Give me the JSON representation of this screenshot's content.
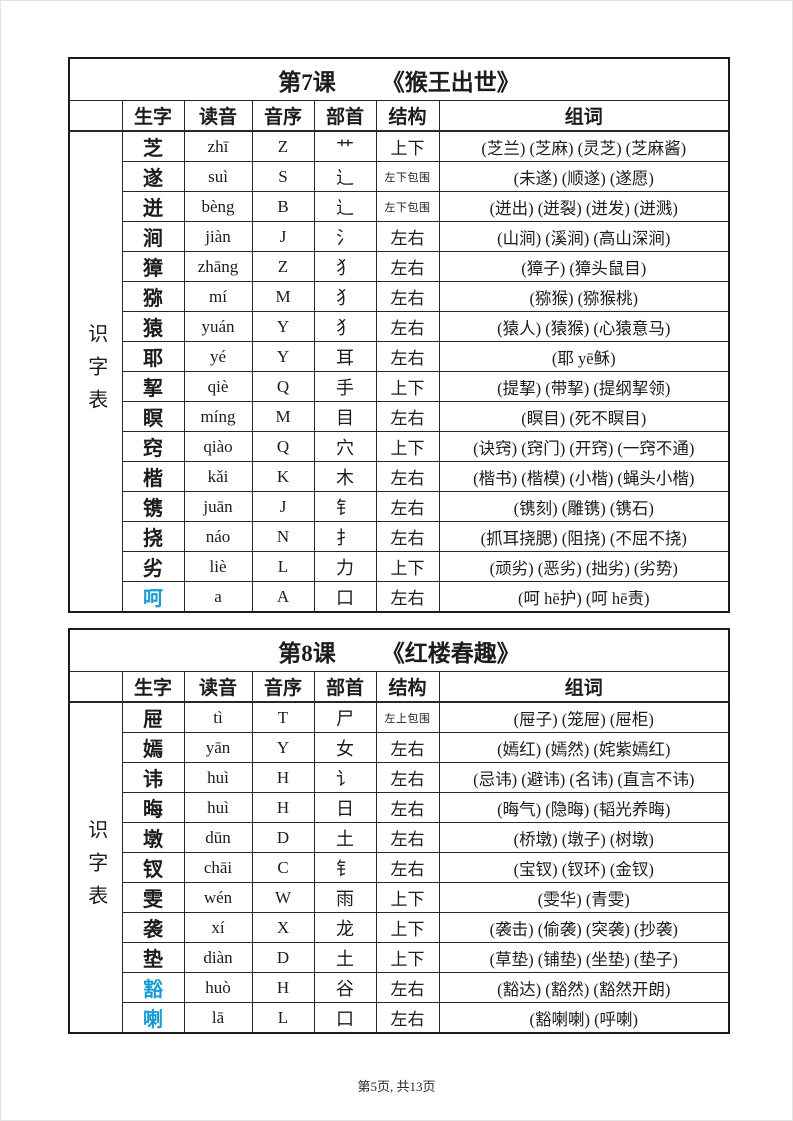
{
  "accent": {
    "highlight_blue": "#1b9bd5"
  },
  "side_label": "识字表",
  "headers": {
    "char": "生字",
    "pinyin": "读音",
    "initial": "音序",
    "radical": "部首",
    "structure": "结构",
    "words": "组词"
  },
  "footer": {
    "page_label": "第5页, 共13页"
  },
  "tables": [
    {
      "lesson": "第7课",
      "title": "《猴王出世》",
      "rows": [
        {
          "char": "芝",
          "pinyin": "zhī",
          "initial": "Z",
          "radical": "艹",
          "structure": "上下",
          "blue": false,
          "words": "(芝兰) (芝麻) (灵芝) (芝麻酱)"
        },
        {
          "char": "遂",
          "pinyin": "suì",
          "initial": "S",
          "radical": "辶",
          "structure": "左下包围",
          "blue": false,
          "words": "(未遂) (顺遂) (遂愿)"
        },
        {
          "char": "迸",
          "pinyin": "bèng",
          "initial": "B",
          "radical": "辶",
          "structure": "左下包围",
          "blue": false,
          "words": "(迸出) (迸裂) (迸发) (迸溅)"
        },
        {
          "char": "涧",
          "pinyin": "jiàn",
          "initial": "J",
          "radical": "氵",
          "structure": "左右",
          "blue": false,
          "words": "(山涧) (溪涧) (高山深涧)"
        },
        {
          "char": "獐",
          "pinyin": "zhāng",
          "initial": "Z",
          "radical": "犭",
          "structure": "左右",
          "blue": false,
          "words": "(獐子) (獐头鼠目)"
        },
        {
          "char": "猕",
          "pinyin": "mí",
          "initial": "M",
          "radical": "犭",
          "structure": "左右",
          "blue": false,
          "words": "(猕猴) (猕猴桃)"
        },
        {
          "char": "猿",
          "pinyin": "yuán",
          "initial": "Y",
          "radical": "犭",
          "structure": "左右",
          "blue": false,
          "words": "(猿人) (猿猴) (心猿意马)"
        },
        {
          "char": "耶",
          "pinyin": "yé",
          "initial": "Y",
          "radical": "耳",
          "structure": "左右",
          "blue": false,
          "words": "(耶 yē稣)"
        },
        {
          "char": "挈",
          "pinyin": "qiè",
          "initial": "Q",
          "radical": "手",
          "structure": "上下",
          "blue": false,
          "words": "(提挈) (带挈) (提纲挈领)"
        },
        {
          "char": "瞑",
          "pinyin": "míng",
          "initial": "M",
          "radical": "目",
          "structure": "左右",
          "blue": false,
          "words": "(瞑目) (死不瞑目)"
        },
        {
          "char": "窍",
          "pinyin": "qiào",
          "initial": "Q",
          "radical": "穴",
          "structure": "上下",
          "blue": false,
          "words": "(诀窍) (窍门) (开窍) (一窍不通)"
        },
        {
          "char": "楷",
          "pinyin": "kǎi",
          "initial": "K",
          "radical": "木",
          "structure": "左右",
          "blue": false,
          "words": "(楷书) (楷模) (小楷) (蝇头小楷)"
        },
        {
          "char": "镌",
          "pinyin": "juān",
          "initial": "J",
          "radical": "钅",
          "structure": "左右",
          "blue": false,
          "words": "(镌刻) (雕镌) (镌石)"
        },
        {
          "char": "挠",
          "pinyin": "náo",
          "initial": "N",
          "radical": "扌",
          "structure": "左右",
          "blue": false,
          "words": "(抓耳挠腮) (阻挠) (不屈不挠)"
        },
        {
          "char": "劣",
          "pinyin": "liè",
          "initial": "L",
          "radical": "力",
          "structure": "上下",
          "blue": false,
          "words": "(顽劣) (恶劣) (拙劣) (劣势)"
        },
        {
          "char": "呵",
          "pinyin": "a",
          "initial": "A",
          "radical": "口",
          "structure": "左右",
          "blue": true,
          "words": "(呵 hē护) (呵 hē责)"
        }
      ]
    },
    {
      "lesson": "第8课",
      "title": "《红楼春趣》",
      "rows": [
        {
          "char": "屉",
          "pinyin": "tì",
          "initial": "T",
          "radical": "尸",
          "structure": "左上包围",
          "blue": false,
          "words": "(屉子) (笼屉) (屉柜)"
        },
        {
          "char": "嫣",
          "pinyin": "yān",
          "initial": "Y",
          "radical": "女",
          "structure": "左右",
          "blue": false,
          "words": "(嫣红) (嫣然) (姹紫嫣红)"
        },
        {
          "char": "讳",
          "pinyin": "huì",
          "initial": "H",
          "radical": "讠",
          "structure": "左右",
          "blue": false,
          "words": "(忌讳) (避讳) (名讳) (直言不讳)"
        },
        {
          "char": "晦",
          "pinyin": "huì",
          "initial": "H",
          "radical": "日",
          "structure": "左右",
          "blue": false,
          "words": "(晦气) (隐晦) (韬光养晦)"
        },
        {
          "char": "墩",
          "pinyin": "dūn",
          "initial": "D",
          "radical": "土",
          "structure": "左右",
          "blue": false,
          "words": "(桥墩) (墩子) (树墩)"
        },
        {
          "char": "钗",
          "pinyin": "chāi",
          "initial": "C",
          "radical": "钅",
          "structure": "左右",
          "blue": false,
          "words": "(宝钗) (钗环) (金钗)"
        },
        {
          "char": "雯",
          "pinyin": "wén",
          "initial": "W",
          "radical": "雨",
          "structure": "上下",
          "blue": false,
          "words": "(雯华) (青雯)"
        },
        {
          "char": "袭",
          "pinyin": "xí",
          "initial": "X",
          "radical": "龙",
          "structure": "上下",
          "blue": false,
          "words": "(袭击) (偷袭) (突袭) (抄袭)"
        },
        {
          "char": "垫",
          "pinyin": "diàn",
          "initial": "D",
          "radical": "土",
          "structure": "上下",
          "blue": false,
          "words": "(草垫) (铺垫) (坐垫) (垫子)"
        },
        {
          "char": "豁",
          "pinyin": "huò",
          "initial": "H",
          "radical": "谷",
          "structure": "左右",
          "blue": true,
          "words": "(豁达) (豁然) (豁然开朗)"
        },
        {
          "char": "喇",
          "pinyin": "lā",
          "initial": "L",
          "radical": "口",
          "structure": "左右",
          "blue": true,
          "words": "(豁喇喇) (呼喇)"
        }
      ]
    }
  ]
}
